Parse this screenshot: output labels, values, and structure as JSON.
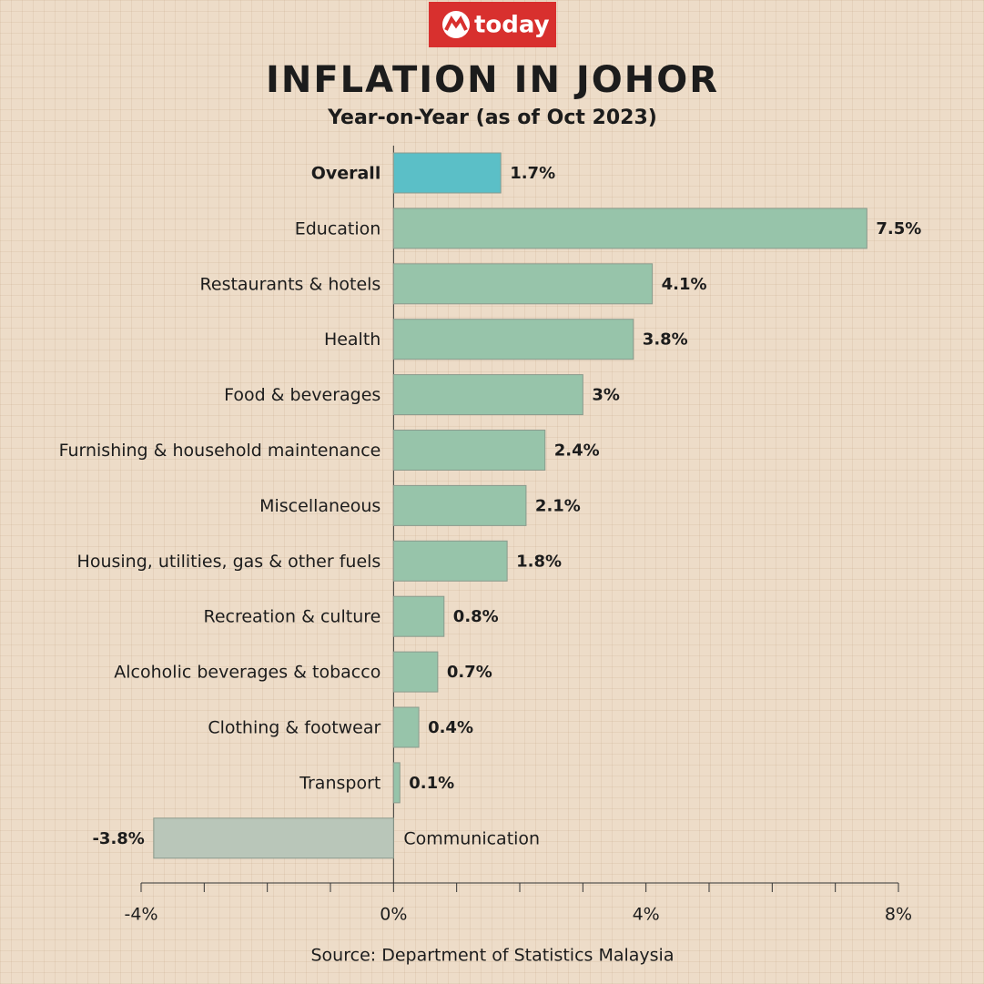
{
  "logo": "today",
  "chart_data": {
    "type": "barh",
    "title": "INFLATION IN JOHOR",
    "subtitle": "Year-on-Year (as of Oct 2023)",
    "source": "Source: Department of Statistics Malaysia",
    "categories": [
      "Overall",
      "Education",
      "Restaurants & hotels",
      "Health",
      "Food & beverages",
      "Furnishing & household maintenance",
      "Miscellaneous",
      "Housing, utilities, gas & other fuels",
      "Recreation & culture",
      "Alcoholic beverages & tobacco",
      "Clothing & footwear",
      "Transport",
      "Communication"
    ],
    "values": [
      1.7,
      7.5,
      4.1,
      3.8,
      3,
      2.4,
      2.1,
      1.8,
      0.8,
      0.7,
      0.4,
      0.1,
      -3.8
    ],
    "value_labels": [
      "1.7%",
      "7.5%",
      "4.1%",
      "3.8%",
      "3%",
      "2.4%",
      "2.1%",
      "1.8%",
      "0.8%",
      "0.7%",
      "0.4%",
      "0.1%",
      "-3.8%"
    ],
    "colors": [
      "#5bbfc7",
      "#97c4aa",
      "#97c4aa",
      "#97c4aa",
      "#97c4aa",
      "#97c4aa",
      "#97c4aa",
      "#97c4aa",
      "#97c4aa",
      "#97c4aa",
      "#97c4aa",
      "#97c4aa",
      "#b9c6b9"
    ],
    "xlim": [
      -4,
      8
    ],
    "xticks": [
      {
        "value": -4,
        "label": "-4%"
      },
      {
        "value": 0,
        "label": "0%"
      },
      {
        "value": 4,
        "label": "4%"
      },
      {
        "value": 8,
        "label": "8%"
      }
    ],
    "xminorticks": [
      -3,
      -2,
      -1,
      1,
      2,
      3,
      5,
      6,
      7
    ]
  }
}
